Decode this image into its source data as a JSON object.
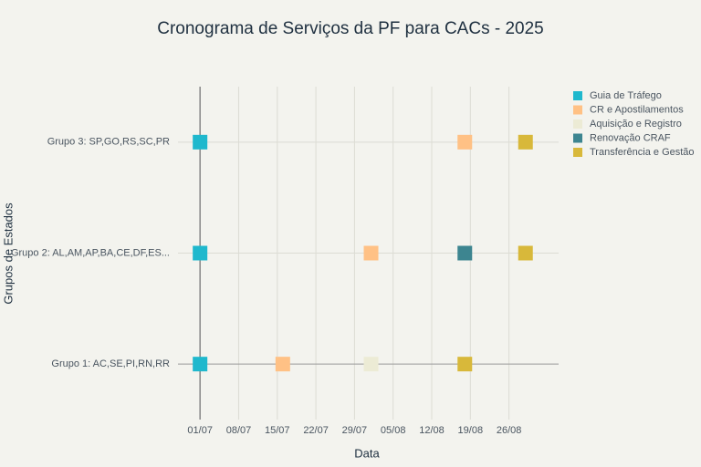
{
  "chart_data": {
    "type": "scatter",
    "title": "Cronograma de Serviços da PF para CACs - 2025",
    "x_label": "Data",
    "y_label": "Grupos de Estados",
    "categories": [
      "Grupo 1: AC,SE,PI,RN,RR",
      "Grupo 2: AL,AM,AP,BA,CE,DF,ES...",
      "Grupo 3: SP,GO,RS,SC,PR"
    ],
    "xlim": [
      "27/06",
      "04/09"
    ],
    "xticks": [
      "01/07",
      "08/07",
      "15/07",
      "22/07",
      "29/07",
      "05/08",
      "12/08",
      "19/08",
      "26/08"
    ],
    "grid": true,
    "series": [
      {
        "name": "Guia de Tráfego",
        "color": "#1fb8cd",
        "x": [
          "01/07",
          "01/07",
          "01/07"
        ],
        "y": [
          "Grupo 1: AC,SE,PI,RN,RR",
          "Grupo 2: AL,AM,AP,BA,CE,DF,ES...",
          "Grupo 3: SP,GO,RS,SC,PR"
        ]
      },
      {
        "name": "CR e Apostilamentos",
        "color": "#ffc185",
        "x": [
          "16/07",
          "01/08",
          "18/08"
        ],
        "y": [
          "Grupo 1: AC,SE,PI,RN,RR",
          "Grupo 2: AL,AM,AP,BA,CE,DF,ES...",
          "Grupo 3: SP,GO,RS,SC,PR"
        ]
      },
      {
        "name": "Aquisição e Registro",
        "color": "#ecebd5",
        "x": [
          "01/08"
        ],
        "y": [
          "Grupo 1: AC,SE,PI,RN,RR"
        ]
      },
      {
        "name": "Renovação CRAF",
        "color": "#3d8590",
        "x": [
          "18/08"
        ],
        "y": [
          "Grupo 2: AL,AM,AP,BA,CE,DF,ES..."
        ]
      },
      {
        "name": "Transferência e Gestão",
        "color": "#d8b83a",
        "x": [
          "18/08",
          "29/08",
          "29/08"
        ],
        "y": [
          "Grupo 1: AC,SE,PI,RN,RR",
          "Grupo 2: AL,AM,AP,BA,CE,DF,ES...",
          "Grupo 3: SP,GO,RS,SC,PR"
        ]
      }
    ]
  }
}
